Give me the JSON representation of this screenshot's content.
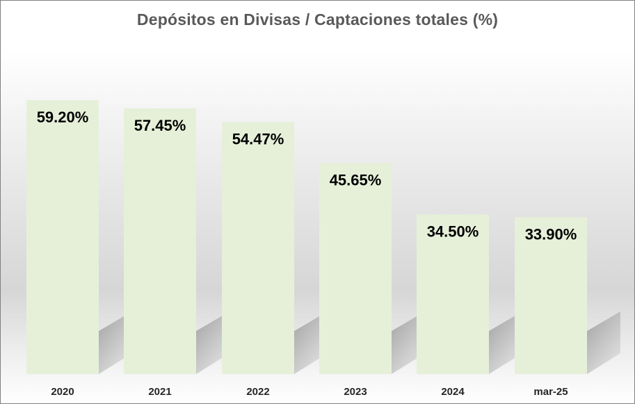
{
  "chart_data": {
    "type": "bar",
    "title": "Depósitos en Divisas / Captaciones totales (%)",
    "categories": [
      "2020",
      "2021",
      "2022",
      "2023",
      "2024",
      "mar-25"
    ],
    "values": [
      59.2,
      57.45,
      54.47,
      45.65,
      34.5,
      33.9
    ],
    "value_labels": [
      "59.20%",
      "57.45%",
      "54.47%",
      "45.65%",
      "34.50%",
      "33.90%"
    ],
    "unit": "%",
    "ylim": [
      0,
      75
    ],
    "grid": false,
    "legend": "none",
    "bar_color": "#e6f0d9",
    "shadow_color": "#9a9a9a"
  }
}
